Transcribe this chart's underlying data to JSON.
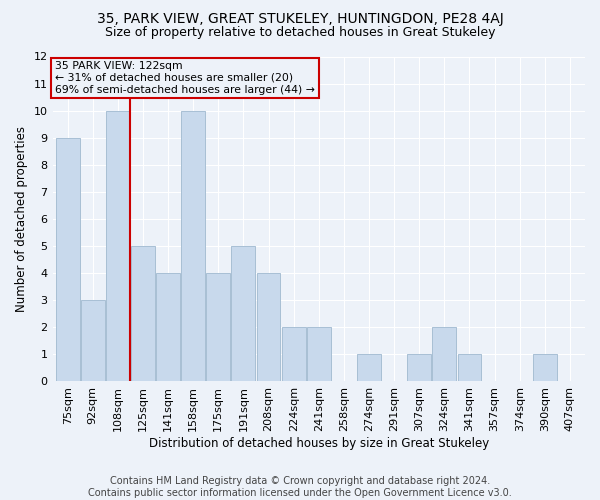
{
  "title1": "35, PARK VIEW, GREAT STUKELEY, HUNTINGDON, PE28 4AJ",
  "title2": "Size of property relative to detached houses in Great Stukeley",
  "xlabel": "Distribution of detached houses by size in Great Stukeley",
  "ylabel": "Number of detached properties",
  "footnote": "Contains HM Land Registry data © Crown copyright and database right 2024.\nContains public sector information licensed under the Open Government Licence v3.0.",
  "categories": [
    "75sqm",
    "92sqm",
    "108sqm",
    "125sqm",
    "141sqm",
    "158sqm",
    "175sqm",
    "191sqm",
    "208sqm",
    "224sqm",
    "241sqm",
    "258sqm",
    "274sqm",
    "291sqm",
    "307sqm",
    "324sqm",
    "341sqm",
    "357sqm",
    "374sqm",
    "390sqm",
    "407sqm"
  ],
  "values": [
    9,
    3,
    10,
    5,
    4,
    10,
    4,
    5,
    4,
    2,
    2,
    0,
    1,
    0,
    1,
    2,
    1,
    0,
    0,
    1,
    0
  ],
  "bar_color": "#c8d9ec",
  "bar_edge_color": "#a8bfd4",
  "highlight_line_color": "#cc0000",
  "annotation_text": "35 PARK VIEW: 122sqm\n← 31% of detached houses are smaller (20)\n69% of semi-detached houses are larger (44) →",
  "annotation_box_color": "#cc0000",
  "ylim": [
    0,
    12
  ],
  "yticks": [
    0,
    1,
    2,
    3,
    4,
    5,
    6,
    7,
    8,
    9,
    10,
    11,
    12
  ],
  "background_color": "#edf2f9",
  "grid_color": "#ffffff",
  "title1_fontsize": 10,
  "title2_fontsize": 9,
  "xlabel_fontsize": 8.5,
  "ylabel_fontsize": 8.5,
  "tick_fontsize": 8,
  "annotation_fontsize": 7.8,
  "footnote_fontsize": 7.0
}
